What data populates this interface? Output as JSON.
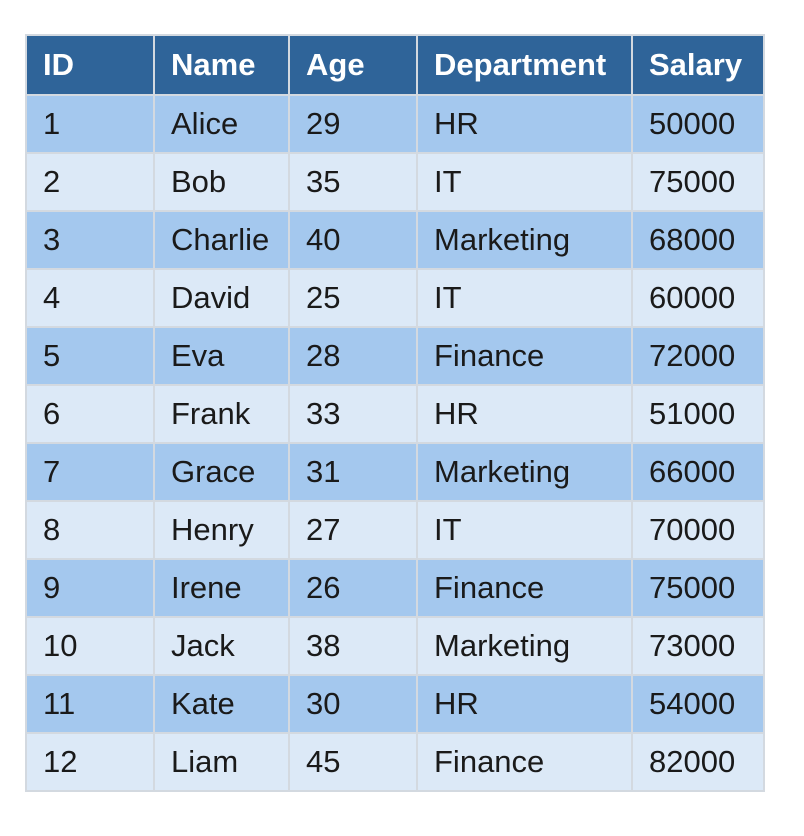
{
  "table": {
    "headers": [
      "ID",
      "Name",
      "Age",
      "Department",
      "Salary"
    ],
    "rows": [
      [
        "1",
        "Alice",
        "29",
        "HR",
        "50000"
      ],
      [
        "2",
        "Bob",
        "35",
        "IT",
        "75000"
      ],
      [
        "3",
        "Charlie",
        "40",
        "Marketing",
        "68000"
      ],
      [
        "4",
        "David",
        "25",
        "IT",
        "60000"
      ],
      [
        "5",
        "Eva",
        "28",
        "Finance",
        "72000"
      ],
      [
        "6",
        "Frank",
        "33",
        "HR",
        "51000"
      ],
      [
        "7",
        "Grace",
        "31",
        "Marketing",
        "66000"
      ],
      [
        "8",
        "Henry",
        "27",
        "IT",
        "70000"
      ],
      [
        "9",
        "Irene",
        "26",
        "Finance",
        "75000"
      ],
      [
        "10",
        "Jack",
        "38",
        "Marketing",
        "73000"
      ],
      [
        "11",
        "Kate",
        "30",
        "HR",
        "54000"
      ],
      [
        "12",
        "Liam",
        "45",
        "Finance",
        "82000"
      ]
    ]
  },
  "colors": {
    "header_bg": "#2f6499",
    "header_text": "#ffffff",
    "row_odd_bg": "#a4c8ee",
    "row_even_bg": "#dce9f7",
    "border": "#d3d9e0"
  }
}
